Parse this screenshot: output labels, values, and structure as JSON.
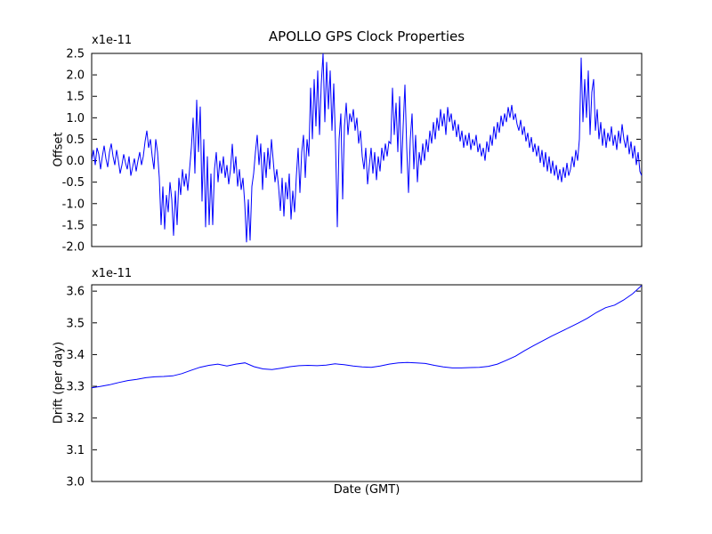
{
  "figure": {
    "title": "APOLLO GPS Clock Properties",
    "background_color": "#ffffff",
    "axis_color": "#000000",
    "line_color": "#0000ff"
  },
  "chart_data": [
    {
      "type": "line",
      "title": "APOLLO GPS Clock Properties",
      "ylabel": "Offset",
      "xlabel": "",
      "offset_text": "x1e-11",
      "units_note": "y values are multiples of 1e-11",
      "ylim": [
        -2.0,
        2.5
      ],
      "yticks": [
        2.5,
        2.0,
        1.5,
        1.0,
        0.5,
        0.0,
        -0.5,
        -1.0,
        -1.5,
        -2.0
      ],
      "x_tick_labels": [],
      "grid": false,
      "legend": "none",
      "line_color": "#0000ff",
      "series_name": "offset-line",
      "values": [
        0.0,
        0.25,
        -0.1,
        0.3,
        0.15,
        -0.2,
        0.1,
        0.35,
        0.05,
        -0.15,
        0.2,
        0.4,
        0.1,
        -0.1,
        0.25,
        0.0,
        -0.3,
        -0.1,
        0.15,
        -0.05,
        -0.2,
        0.1,
        -0.35,
        -0.15,
        0.05,
        -0.25,
        0.0,
        0.2,
        -0.1,
        0.1,
        0.45,
        0.7,
        0.3,
        0.5,
        0.1,
        -0.2,
        0.5,
        0.2,
        -0.4,
        -1.5,
        -0.6,
        -1.6,
        -0.8,
        -1.2,
        -0.5,
        -0.9,
        -1.75,
        -0.7,
        -1.5,
        -0.4,
        -0.8,
        -0.2,
        -0.6,
        -0.3,
        -0.7,
        -0.2,
        0.3,
        1.0,
        -0.3,
        1.42,
        0.2,
        1.26,
        -0.95,
        0.5,
        -1.55,
        0.1,
        -1.5,
        -0.3,
        -1.5,
        -0.2,
        0.2,
        -0.5,
        0.0,
        -0.3,
        0.1,
        -0.4,
        -0.1,
        -0.55,
        -0.2,
        0.39,
        -0.3,
        0.1,
        -0.6,
        -0.2,
        -0.68,
        -0.4,
        -1.0,
        -1.9,
        -0.9,
        -1.86,
        -0.6,
        -0.3,
        0.2,
        0.6,
        -0.1,
        0.4,
        -0.68,
        0.2,
        -0.4,
        0.3,
        -0.2,
        0.5,
        0.0,
        -0.5,
        -0.2,
        -0.6,
        -1.17,
        -0.4,
        -1.3,
        -0.5,
        -0.9,
        -0.3,
        -1.37,
        -0.7,
        -1.2,
        -0.35,
        0.3,
        -0.75,
        0.2,
        0.6,
        -0.4,
        0.5,
        0.1,
        1.7,
        0.5,
        1.9,
        0.8,
        2.1,
        0.6,
        1.8,
        2.5,
        0.9,
        2.3,
        1.2,
        2.1,
        0.7,
        1.8,
        0.4,
        -1.55,
        0.5,
        1.1,
        -0.9,
        0.8,
        1.35,
        0.6,
        1.1,
        0.9,
        1.2,
        0.7,
        1.0,
        0.4,
        0.7,
        0.1,
        -0.2,
        0.3,
        -0.55,
        -0.1,
        0.3,
        -0.3,
        0.2,
        -0.45,
        0.1,
        -0.25,
        0.3,
        0.0,
        0.4,
        0.1,
        0.45,
        0.4,
        1.7,
        0.6,
        1.35,
        0.2,
        1.5,
        -0.3,
        0.8,
        1.77,
        0.3,
        -0.75,
        0.5,
        1.1,
        -0.2,
        0.6,
        -0.5,
        0.2,
        -0.1,
        0.4,
        0.0,
        0.5,
        0.2,
        0.7,
        0.4,
        0.9,
        0.5,
        1.0,
        0.7,
        1.2,
        0.8,
        1.1,
        0.6,
        1.25,
        0.9,
        1.1,
        0.7,
        0.95,
        0.55,
        0.85,
        0.45,
        0.7,
        0.3,
        0.6,
        0.35,
        0.65,
        0.25,
        0.5,
        0.35,
        0.6,
        0.2,
        0.4,
        0.1,
        0.3,
        0.0,
        0.45,
        0.2,
        0.6,
        0.35,
        0.8,
        0.5,
        0.9,
        0.65,
        1.05,
        0.8,
        1.1,
        0.9,
        1.25,
        1.0,
        1.3,
        0.95,
        1.1,
        0.85,
        0.7,
        0.95,
        0.6,
        0.8,
        0.45,
        0.65,
        0.3,
        0.55,
        0.2,
        0.4,
        0.1,
        0.35,
        -0.05,
        0.25,
        -0.15,
        0.2,
        -0.25,
        0.1,
        -0.3,
        0.0,
        -0.35,
        -0.1,
        -0.45,
        -0.2,
        -0.5,
        -0.15,
        -0.4,
        -0.05,
        -0.35,
        -0.2,
        0.1,
        -0.15,
        0.25,
        0.0,
        0.5,
        2.4,
        0.9,
        1.9,
        1.0,
        2.1,
        0.6,
        1.6,
        1.9,
        0.7,
        1.2,
        0.5,
        0.9,
        0.35,
        0.75,
        0.3,
        0.65,
        0.45,
        0.8,
        0.35,
        0.6,
        0.25,
        0.7,
        0.4,
        0.85,
        0.5,
        0.3,
        0.6,
        0.15,
        0.45,
        0.05,
        0.35,
        -0.1,
        0.2,
        -0.25,
        -0.35
      ]
    },
    {
      "type": "line",
      "title": "",
      "ylabel": "Drift (per day)",
      "xlabel": "Date (GMT)",
      "offset_text": "x1e-11",
      "units_note": "y values are multiples of 1e-11",
      "ylim": [
        3.0,
        3.62
      ],
      "yticks": [
        3.6,
        3.5,
        3.4,
        3.3,
        3.2,
        3.1,
        3.0
      ],
      "x_tick_labels": [],
      "grid": false,
      "legend": "none",
      "line_color": "#0000ff",
      "series_name": "drift-line",
      "values": [
        3.295,
        3.3,
        3.305,
        3.312,
        3.318,
        3.322,
        3.327,
        3.33,
        3.331,
        3.333,
        3.34,
        3.35,
        3.36,
        3.366,
        3.37,
        3.364,
        3.37,
        3.374,
        3.362,
        3.355,
        3.353,
        3.357,
        3.362,
        3.365,
        3.366,
        3.365,
        3.367,
        3.371,
        3.368,
        3.364,
        3.361,
        3.36,
        3.364,
        3.37,
        3.374,
        3.375,
        3.374,
        3.372,
        3.366,
        3.361,
        3.358,
        3.358,
        3.359,
        3.36,
        3.363,
        3.37,
        3.382,
        3.395,
        3.412,
        3.428,
        3.443,
        3.458,
        3.472,
        3.486,
        3.5,
        3.515,
        3.533,
        3.548,
        3.556,
        3.572,
        3.592,
        3.618
      ]
    }
  ]
}
